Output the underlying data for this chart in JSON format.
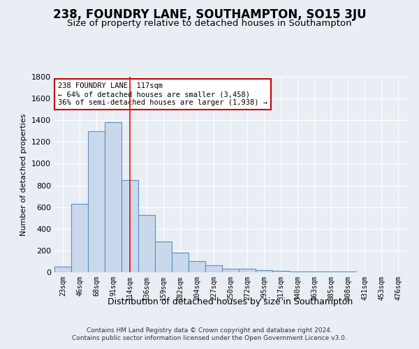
{
  "title": "238, FOUNDRY LANE, SOUTHAMPTON, SO15 3JU",
  "subtitle": "Size of property relative to detached houses in Southampton",
  "xlabel": "Distribution of detached houses by size in Southampton",
  "ylabel": "Number of detached properties",
  "categories": [
    "23sqm",
    "46sqm",
    "68sqm",
    "91sqm",
    "114sqm",
    "136sqm",
    "159sqm",
    "182sqm",
    "204sqm",
    "227sqm",
    "250sqm",
    "272sqm",
    "295sqm",
    "317sqm",
    "340sqm",
    "363sqm",
    "385sqm",
    "408sqm",
    "431sqm",
    "453sqm",
    "476sqm"
  ],
  "values": [
    50,
    630,
    1300,
    1380,
    850,
    530,
    280,
    180,
    105,
    65,
    35,
    35,
    20,
    10,
    8,
    5,
    5,
    5,
    3,
    2,
    2
  ],
  "bar_color": "#c9d9eb",
  "bar_edge_color": "#5a8fc0",
  "red_line_x": 4,
  "annotation_text": "238 FOUNDRY LANE: 117sqm\n← 64% of detached houses are smaller (3,458)\n36% of semi-detached houses are larger (1,938) →",
  "ylim": [
    0,
    1800
  ],
  "yticks": [
    0,
    200,
    400,
    600,
    800,
    1000,
    1200,
    1400,
    1600,
    1800
  ],
  "footer1": "Contains HM Land Registry data © Crown copyright and database right 2024.",
  "footer2": "Contains public sector information licensed under the Open Government Licence v3.0.",
  "bg_color": "#e8eef4",
  "grid_color": "#ffffff",
  "title_fontsize": 12,
  "subtitle_fontsize": 9.5,
  "annotation_box_color": "#ffffff",
  "annotation_box_edge": "#cc0000"
}
